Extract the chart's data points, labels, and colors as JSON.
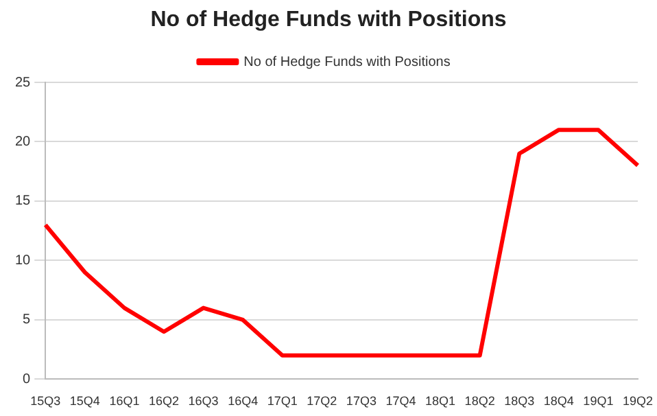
{
  "chart_data": {
    "type": "line",
    "title": "No of Hedge Funds with Positions",
    "categories": [
      "15Q3",
      "15Q4",
      "16Q1",
      "16Q2",
      "16Q3",
      "16Q4",
      "17Q1",
      "17Q2",
      "17Q3",
      "17Q4",
      "18Q1",
      "18Q2",
      "18Q3",
      "18Q4",
      "19Q1",
      "19Q2"
    ],
    "series": [
      {
        "name": "No of Hedge Funds with Positions",
        "color": "#ff0000",
        "values": [
          13,
          9,
          6,
          4,
          6,
          5,
          2,
          2,
          2,
          2,
          2,
          2,
          19,
          21,
          21,
          18
        ]
      }
    ],
    "ylim": [
      0,
      25
    ],
    "yticks": [
      0,
      5,
      10,
      15,
      20,
      25
    ],
    "grid": "y",
    "legend": "top",
    "marker": "none",
    "line_style": "solid"
  }
}
